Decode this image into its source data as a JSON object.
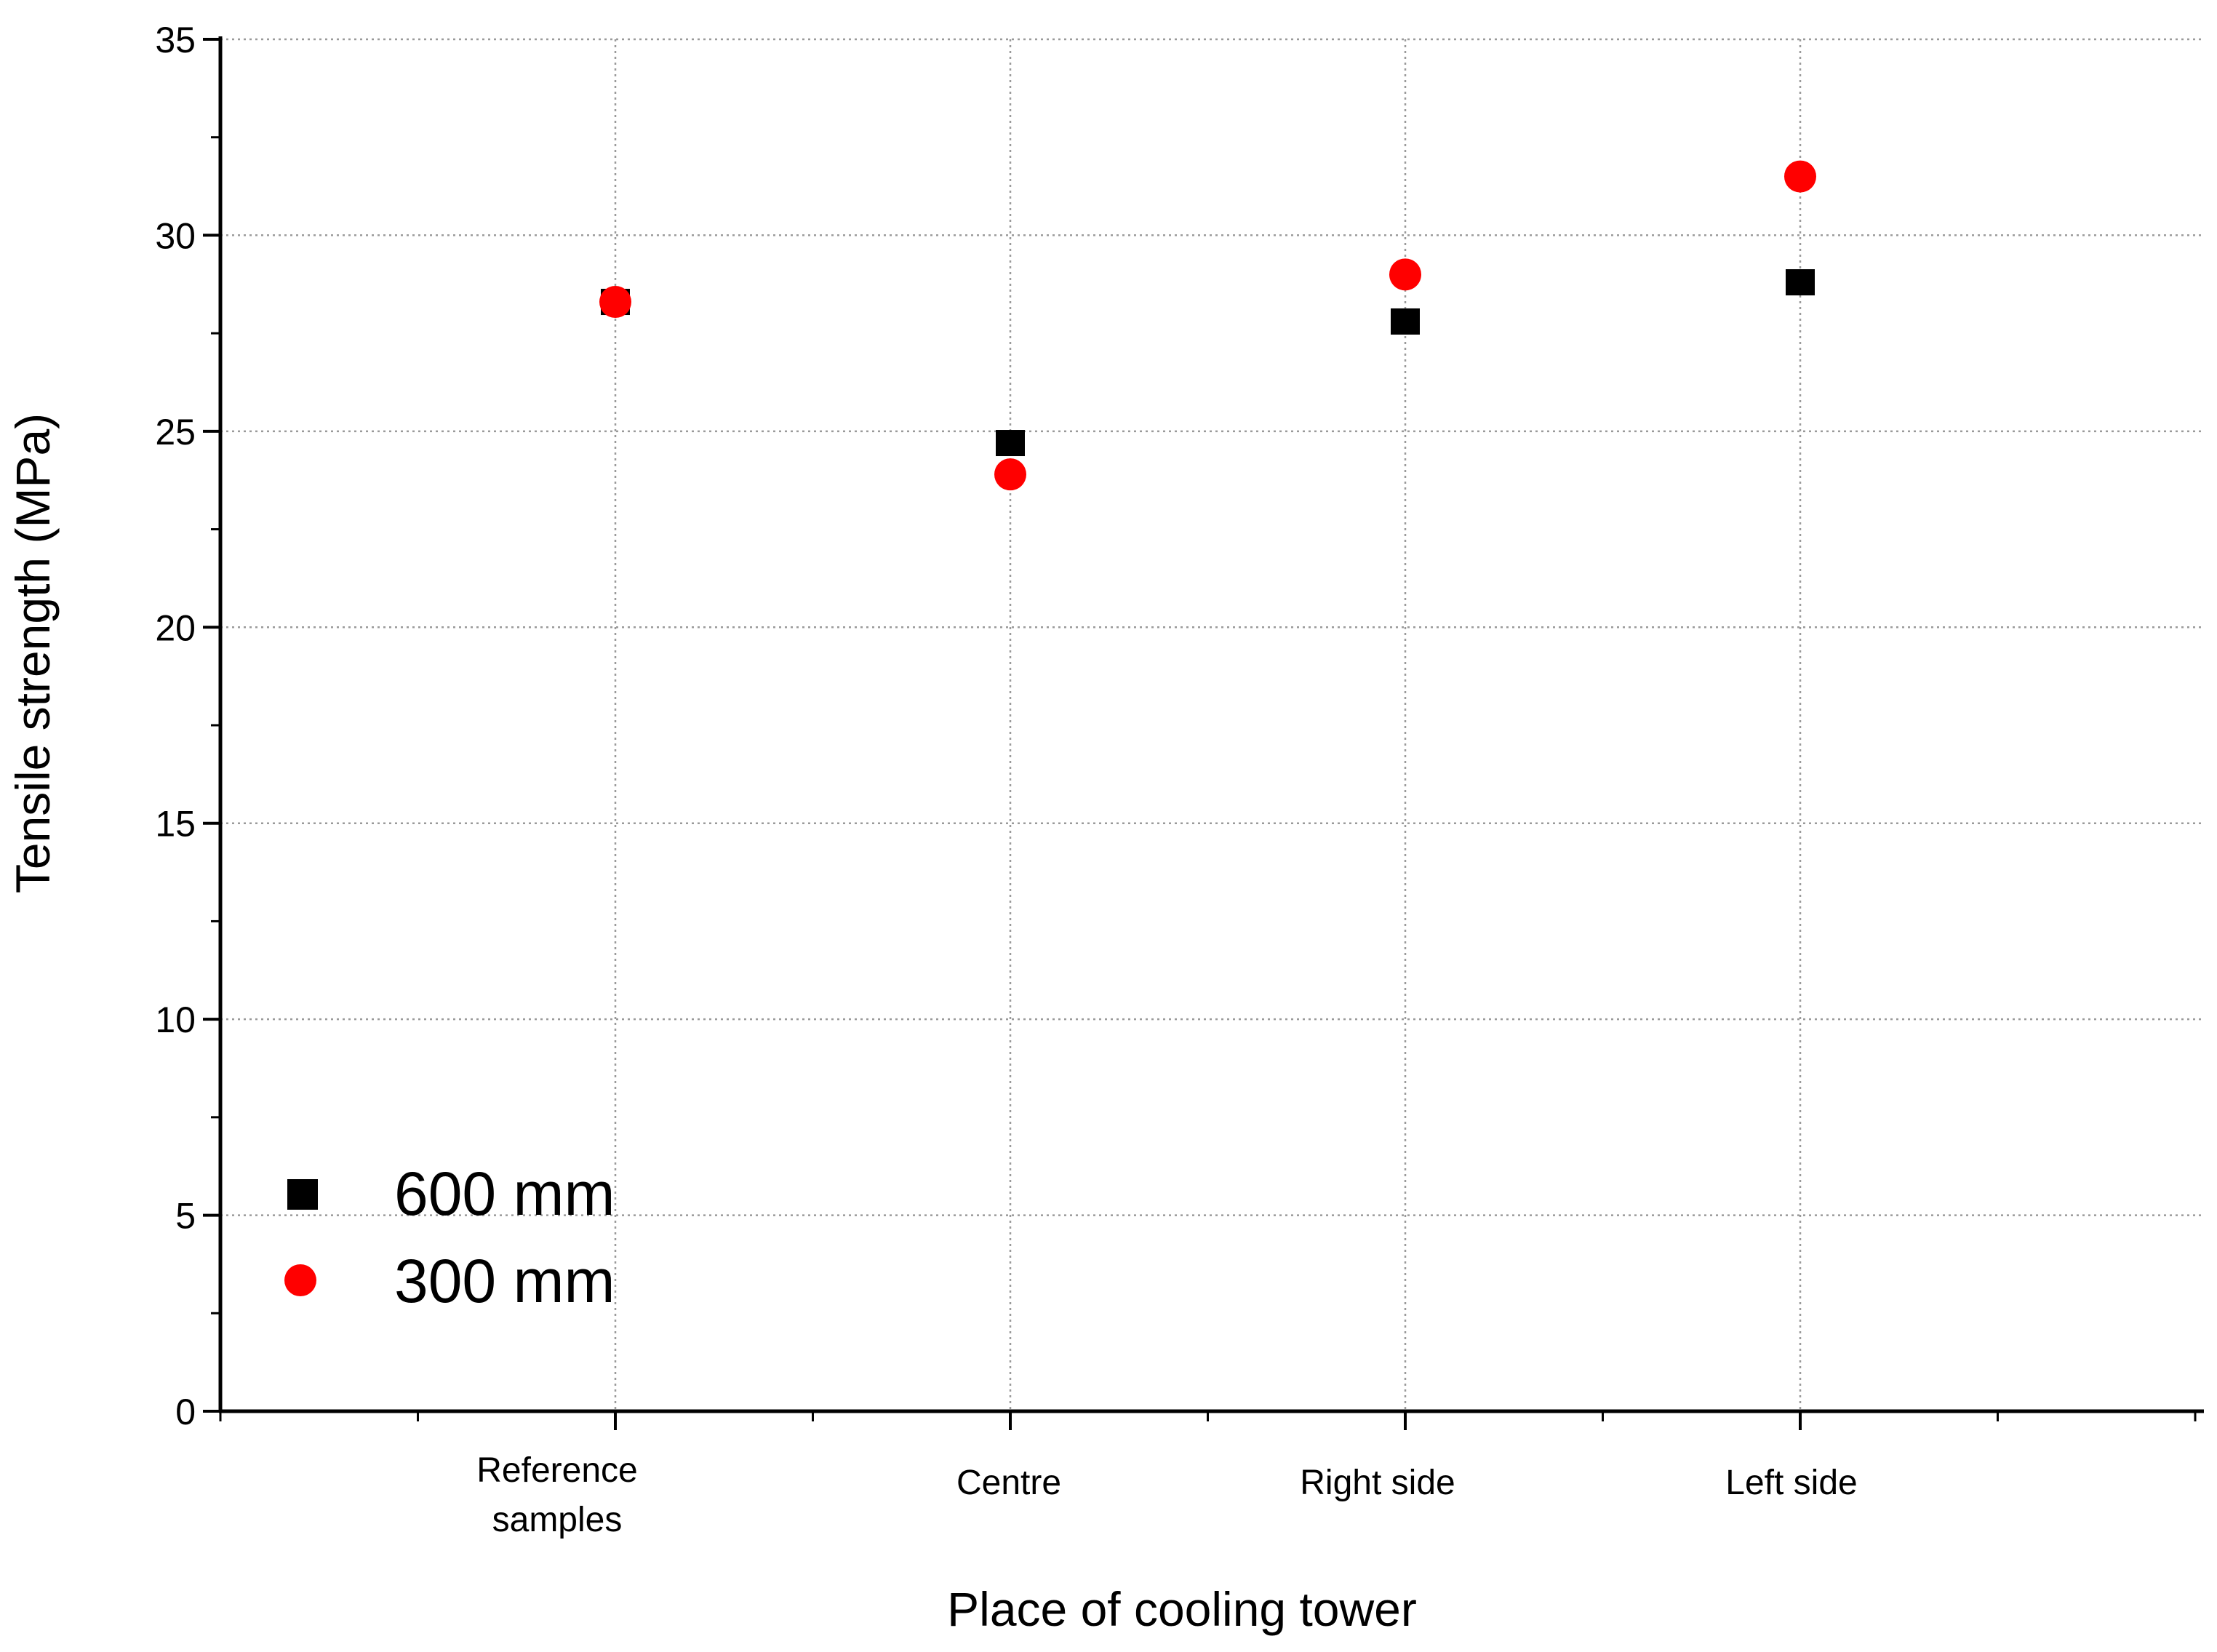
{
  "chart_data": {
    "type": "scatter",
    "title": "",
    "xlabel": "Place of cooling tower",
    "ylabel": "Tensile strength (MPa)",
    "ylim": [
      0,
      35
    ],
    "yticks": [
      "0",
      "5",
      "10",
      "15",
      "20",
      "25",
      "30",
      "35"
    ],
    "categories": [
      {
        "lines": [
          "Reference",
          "samples"
        ]
      },
      {
        "lines": [
          "Centre"
        ]
      },
      {
        "lines": [
          "Right side"
        ]
      },
      {
        "lines": [
          "Left side"
        ]
      }
    ],
    "series": [
      {
        "name": "600 mm",
        "marker": "square",
        "color": "#000000",
        "values": [
          28.3,
          24.7,
          27.8,
          28.8
        ]
      },
      {
        "name": "300 mm",
        "marker": "circle",
        "color": "#ff0000",
        "values": [
          28.3,
          23.9,
          29.0,
          31.5
        ]
      }
    ],
    "grid": true,
    "legend_position": "bottom-left"
  }
}
